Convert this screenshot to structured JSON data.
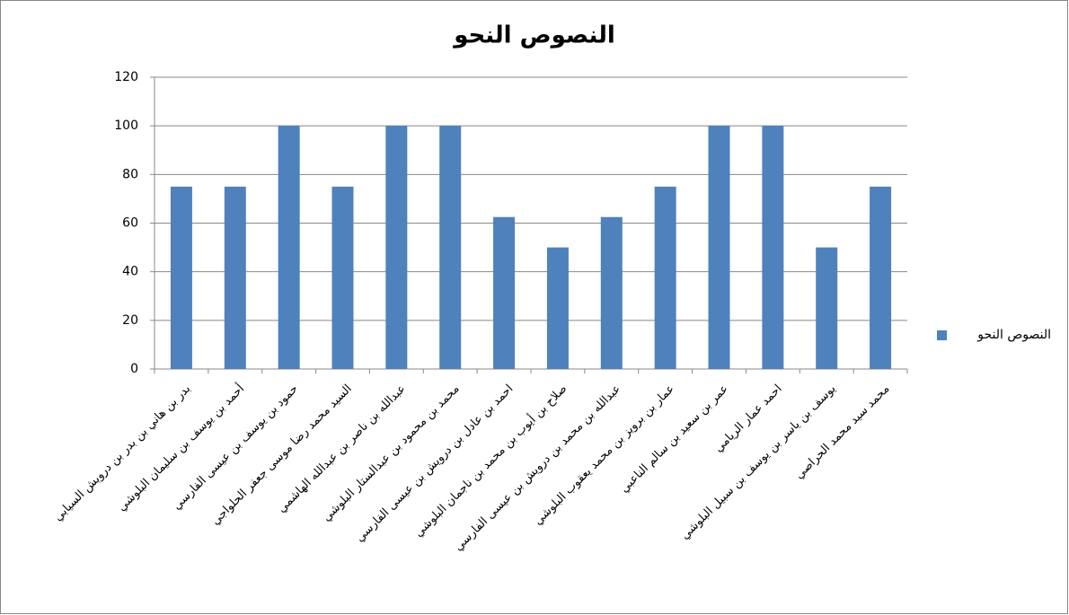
{
  "chart_data": {
    "type": "bar",
    "title": "النصوص النحو",
    "categories": [
      "بدر بن هاني بن بدر بن درويش السيابي",
      "أحمد بن يوسف بن سليمان البلوشي",
      "حمود بن يوسف بن عيسى الفارسي",
      "السيد محمد رضا موسى جعفر الحلواجي",
      "عبدالله بن ناصر بن عبدالله الهاشمي",
      "محمد بن محمود بن عبدالستار البلوشي",
      "احمد بن عادل بن درويش بن عيسى الفارسي",
      "صلاح بن أيوب بن محمد بن ناجمان البلوشي",
      "عبدالله بن محمد بن درويش بن عيسى الفارسي",
      "عمار بن برويز بن محمد يعقوب البلوشي",
      "عمر بن سعيد بن سالم الناعبي",
      "احمد عمار الريامي",
      "يوسف بن ياسر بن يوسف بن سبيل البلوشي",
      "محمد سيد محمد الحراصي"
    ],
    "series": [
      {
        "name": "النصوص النحو",
        "color": "#4f81bd",
        "values": [
          75,
          75,
          100,
          75,
          100,
          100,
          62.5,
          50,
          62.5,
          75,
          100,
          100,
          50,
          75
        ]
      }
    ],
    "ylim": [
      0,
      120
    ],
    "yticks": [
      0,
      20,
      40,
      60,
      80,
      100,
      120
    ],
    "grid": true,
    "legend": "right"
  }
}
